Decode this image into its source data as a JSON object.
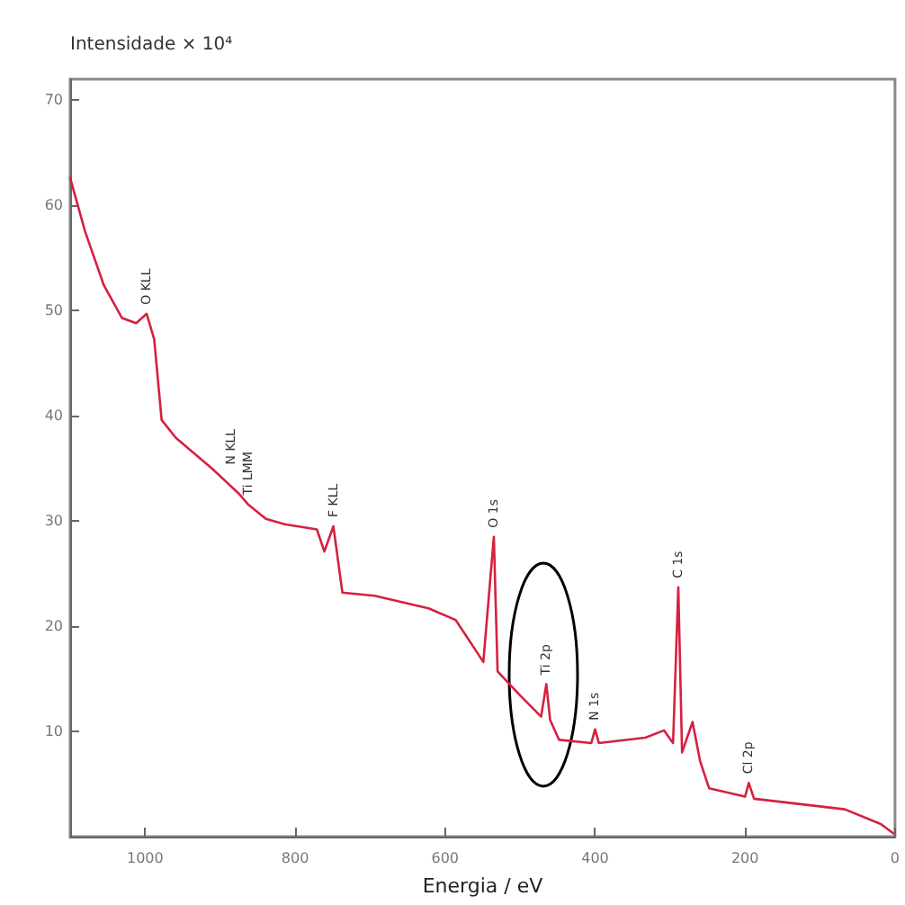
{
  "chart_data": {
    "type": "line",
    "ylabel": "Intensidade × 10⁴",
    "xlabel": "Energia / eV",
    "x": [
      1100,
      1080,
      1055,
      1031,
      1012,
      998,
      988,
      978,
      959,
      911,
      875,
      863,
      839,
      814,
      771,
      761,
      749,
      737,
      694,
      622,
      586,
      549,
      535,
      530,
      501,
      472,
      465,
      460,
      448,
      405,
      400,
      395,
      333,
      308,
      296,
      289,
      284,
      270,
      260,
      248,
      200,
      195,
      188,
      67,
      19,
      2
    ],
    "series": [
      {
        "color": "#d62040",
        "values": [
          62.6,
          57.5,
          52.4,
          49.3,
          48.8,
          49.7,
          47.3,
          39.6,
          37.9,
          35,
          32.6,
          31.6,
          30.2,
          29.7,
          29.2,
          27.1,
          29.5,
          23.2,
          22.9,
          21.7,
          20.6,
          16.6,
          28.5,
          15.7,
          13.5,
          11.4,
          14.5,
          11.1,
          9.2,
          8.9,
          10.2,
          8.9,
          9.4,
          10.1,
          8.9,
          23.7,
          8,
          10.9,
          7.2,
          4.6,
          3.8,
          5.1,
          3.6,
          2.6,
          1.2,
          0.3
        ]
      }
    ],
    "xlim": [
      1100,
      0
    ],
    "xticks": [
      1000,
      800,
      600,
      400,
      200,
      0
    ],
    "ylim": [
      0,
      72
    ],
    "yticks": [
      {
        "value": 0,
        "label": null
      },
      10,
      20,
      30,
      40,
      50,
      60,
      70
    ],
    "grid": false,
    "marker": "none",
    "line_style": "solid",
    "annotations": [
      {
        "text": "O KLL",
        "x": 998,
        "y": 49.7
      },
      {
        "text": "N KLL",
        "x": 885,
        "y": 34.5
      },
      {
        "text": "Ti LMM",
        "x": 863,
        "y": 31.6
      },
      {
        "text": "F KLL",
        "x": 749,
        "y": 29.5
      },
      {
        "text": "O 1s",
        "x": 535,
        "y": 28.5
      },
      {
        "text": "Ti 2p",
        "x": 465,
        "y": 14.5
      },
      {
        "text": "N 1s",
        "x": 400,
        "y": 10.2
      },
      {
        "text": "C 1s",
        "x": 289,
        "y": 23.7
      },
      {
        "text": "Cl 2p",
        "x": 195,
        "y": 5.1
      }
    ]
  }
}
